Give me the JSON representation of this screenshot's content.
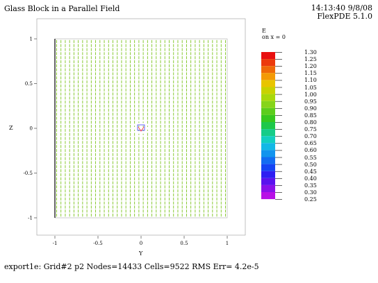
{
  "header": {
    "title": "Glass Block in a Parallel Field",
    "time": "14:13:40 9/8/08",
    "version": "FlexPDE 5.1.0"
  },
  "footer": {
    "text": "export1e:  Grid#2  p2  Nodes=14433 Cells=9522 RMS Err= 4.2e-5"
  },
  "legend": {
    "variable": "E",
    "subtitle": "on x = 0",
    "levels": [
      {
        "value": "1.30",
        "color": "#e81010"
      },
      {
        "value": "1.25",
        "color": "#ec3a0c"
      },
      {
        "value": "1.20",
        "color": "#ef6a08"
      },
      {
        "value": "1.15",
        "color": "#f39a06"
      },
      {
        "value": "1.10",
        "color": "#e8c400"
      },
      {
        "value": "1.05",
        "color": "#c8d200"
      },
      {
        "value": "1.00",
        "color": "#a8d80a"
      },
      {
        "value": "0.95",
        "color": "#86d41a"
      },
      {
        "value": "0.90",
        "color": "#5ccd1c"
      },
      {
        "value": "0.85",
        "color": "#36c81e"
      },
      {
        "value": "0.80",
        "color": "#1ec84a"
      },
      {
        "value": "0.75",
        "color": "#16cc88"
      },
      {
        "value": "0.70",
        "color": "#12cfc0"
      },
      {
        "value": "0.65",
        "color": "#12b8e6"
      },
      {
        "value": "0.60",
        "color": "#1294ee"
      },
      {
        "value": "0.55",
        "color": "#126cf2"
      },
      {
        "value": "0.50",
        "color": "#1444f4"
      },
      {
        "value": "0.45",
        "color": "#2e1ef2"
      },
      {
        "value": "0.40",
        "color": "#5a12ee"
      },
      {
        "value": "0.35",
        "color": "#8a10ea"
      },
      {
        "value": "0.30",
        "color": "#b810e6"
      },
      {
        "value": "0.25",
        "color": "#e010e0"
      }
    ]
  },
  "chart_data": {
    "type": "vector",
    "title": "Glass Block in a Parallel Field",
    "xlabel": "Y",
    "ylabel": "Z",
    "xlim": [
      -1,
      1
    ],
    "ylim": [
      -1,
      1
    ],
    "x_ticks": [
      "-1",
      "-0.5",
      "0",
      "0.5",
      "1"
    ],
    "y_ticks": [
      "1",
      "0.5",
      "0",
      "-0.5",
      "-1"
    ],
    "field": "uniform field along Z, magnitude ~0.95-1.0, small perturbation around glass block at origin",
    "block_marker": {
      "y": 0,
      "z": 0
    },
    "arrow_color": "#7cc41e"
  }
}
